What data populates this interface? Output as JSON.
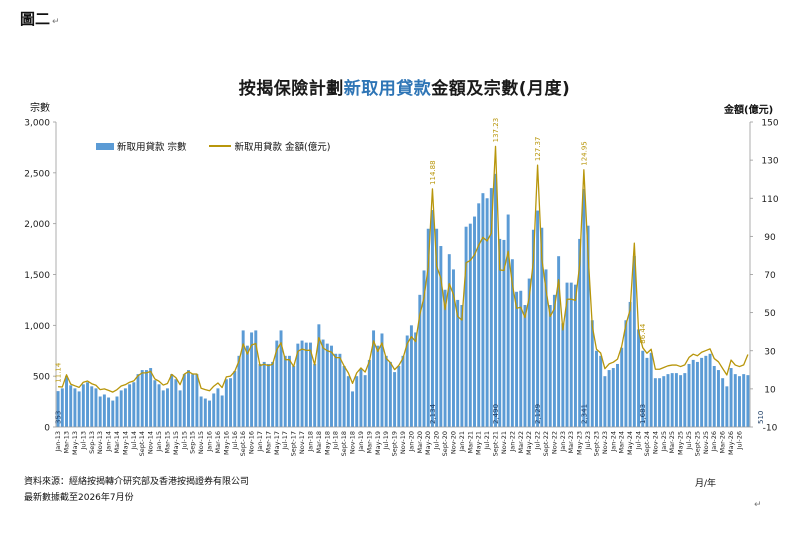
{
  "figure_label": "圖二",
  "paragraph_mark": "↵",
  "title_prefix": "按揭保險計劃",
  "title_highlight": "新取用貸款",
  "title_suffix": "金額及宗數(月度)",
  "source_line1": "資料來源：經絡按揭轉介研究部及香港按揭證券有限公司",
  "source_line2": "最新數據截至2026年7月份",
  "colors": {
    "bars": "#5b9bd5",
    "line": "#b8960b",
    "title_highlight": "#2e75b6"
  },
  "chart_data": {
    "type": "bar",
    "title": "按揭保險計劃新取用貸款金額及宗數(月度)",
    "ylabel_left": "宗數",
    "ylabel_right": "金額(億元)",
    "xlabel": "月/年",
    "left_axis": {
      "min": 0,
      "max": 3000,
      "ticks": [
        "0",
        "500",
        "1,000",
        "1,500",
        "2,000",
        "2,500",
        "3,000"
      ]
    },
    "right_axis": {
      "min": -10,
      "max": 150,
      "ticks": [
        "-10",
        "10",
        "30",
        "50",
        "70",
        "90",
        "110",
        "130",
        "150"
      ]
    },
    "x_tick_labels": [
      "Jan-13",
      "Mar-13",
      "May-13",
      "Jul-13",
      "Sep-13",
      "Nov-13",
      "Jan-14",
      "Mar-14",
      "May-14",
      "Jul-14",
      "Sept-14",
      "Nov-14",
      "Jan-15",
      "Mar-15",
      "May-15",
      "Jul-15",
      "Sep-15",
      "Nov-15",
      "Jan-16",
      "Mar-16",
      "May-16",
      "Jul-16",
      "Sept-16",
      "Nov-16",
      "Jan-17",
      "Mar-17",
      "May-17",
      "Jul-17",
      "Sept-17",
      "Nov-17",
      "Jan-18",
      "Mar-18",
      "May-18",
      "Jul-18",
      "Sept-18",
      "Nov-18",
      "Jan-19",
      "Mar-19",
      "May-19",
      "Jul-19",
      "Sept-19",
      "Nov-19",
      "Jan-20",
      "Mar-20",
      "May-20",
      "Jul-20",
      "Sept-20",
      "Nov-20",
      "Jan-21",
      "Mar-21",
      "May-21",
      "Jul-21",
      "Sept-21",
      "Nov-21",
      "Jan-22",
      "Mar-22",
      "May-22",
      "Jul-22",
      "Sept-22",
      "Nov-22",
      "Jan-23",
      "Mar-23",
      "May-23",
      "Jul-23",
      "Sept-23",
      "Nov-23",
      "Jan-24",
      "Mar-24",
      "May-24",
      "Jul-24",
      "Sept-24",
      "Nov-24",
      "Jan-25",
      "Mar-25",
      "May-25",
      "Jul-25",
      "Sept-25",
      "Nov-25",
      "Jan-26",
      "Mar-26",
      "May-26",
      "Jul-26"
    ],
    "series": [
      {
        "name": "新取用貸款 宗數",
        "axis": "left",
        "type": "bar",
        "values": [
          353,
          380,
          500,
          410,
          380,
          350,
          420,
          440,
          400,
          380,
          300,
          320,
          290,
          260,
          300,
          360,
          380,
          420,
          440,
          520,
          560,
          560,
          580,
          460,
          420,
          360,
          380,
          520,
          470,
          360,
          520,
          560,
          520,
          520,
          300,
          280,
          260,
          330,
          380,
          310,
          470,
          480,
          550,
          700,
          950,
          800,
          930,
          950,
          620,
          640,
          620,
          640,
          850,
          950,
          700,
          700,
          600,
          820,
          850,
          830,
          830,
          620,
          1010,
          860,
          820,
          800,
          720,
          720,
          600,
          500,
          350,
          500,
          570,
          510,
          660,
          950,
          800,
          920,
          700,
          640,
          540,
          600,
          700,
          900,
          1000,
          930,
          1300,
          1540,
          1950,
          2134,
          1950,
          1780,
          1350,
          1700,
          1550,
          1250,
          1200,
          1970,
          2000,
          2070,
          2200,
          2300,
          2250,
          2350,
          2490,
          1850,
          1840,
          2090,
          1650,
          1330,
          1340,
          1200,
          1460,
          1940,
          2129,
          1960,
          1550,
          1200,
          1300,
          1680,
          1020,
          1420,
          1420,
          1400,
          1850,
          2341,
          1980,
          1050,
          750,
          700,
          500,
          560,
          580,
          620,
          780,
          1050,
          1230,
          1683,
          960,
          750,
          680,
          730,
          480,
          480,
          500,
          520,
          530,
          530,
          510,
          530,
          620,
          660,
          640,
          680,
          700,
          720,
          600,
          560,
          480,
          400,
          580,
          520,
          500,
          520,
          510
        ]
      },
      {
        "name": "新取用貸款 金額(億元)",
        "axis": "right",
        "type": "line",
        "values": [
          11.14,
          11.0,
          17.4,
          12.5,
          11.6,
          10.8,
          13.5,
          14.1,
          12.7,
          11.9,
          9.6,
          10.0,
          9.2,
          8.3,
          9.6,
          11.5,
          12.2,
          13.5,
          14.2,
          16.9,
          18.4,
          18.4,
          19.2,
          15.2,
          14.0,
          12.0,
          12.8,
          17.6,
          15.9,
          12.2,
          17.7,
          19.1,
          17.8,
          17.8,
          10.3,
          9.6,
          9.0,
          11.4,
          13.1,
          10.7,
          16.3,
          16.7,
          19.2,
          24.6,
          33.6,
          28.3,
          33.0,
          33.8,
          22.2,
          22.9,
          22.2,
          22.9,
          30.6,
          34.2,
          25.3,
          25.3,
          21.7,
          29.7,
          30.9,
          30.2,
          30.3,
          22.6,
          36.9,
          31.5,
          30.0,
          29.3,
          26.4,
          26.4,
          22.0,
          18.4,
          12.9,
          18.4,
          21.0,
          18.8,
          24.4,
          35.2,
          29.6,
          34.1,
          26.0,
          23.8,
          20.1,
          22.3,
          26.1,
          33.7,
          37.4,
          34.8,
          48.9,
          58.1,
          73.9,
          114.88,
          74.4,
          68.0,
          51.6,
          65.2,
          59.5,
          48.0,
          46.1,
          76.1,
          77.4,
          80.3,
          85.4,
          89.5,
          87.6,
          91.7,
          137.23,
          72.4,
          72.1,
          82.2,
          64.9,
          52.3,
          52.8,
          47.4,
          57.8,
          77.0,
          127.37,
          78.3,
          62.0,
          48.0,
          52.1,
          67.3,
          40.9,
          57.0,
          57.1,
          56.4,
          74.9,
          124.95,
          80.7,
          43.0,
          30.8,
          28.8,
          20.6,
          23.1,
          24.0,
          25.6,
          32.4,
          43.8,
          51.5,
          86.44,
          40.4,
          31.6,
          28.7,
          30.8,
          20.3,
          20.3,
          21.2,
          22.1,
          22.5,
          22.5,
          21.7,
          22.6,
          26.5,
          28.2,
          27.4,
          29.2,
          30.1,
          31.0,
          25.9,
          24.2,
          20.7,
          17.3,
          25.1,
          22.5,
          21.7,
          22.6,
          28.05
        ]
      }
    ],
    "annotations": {
      "line_peaks": [
        {
          "index": 0,
          "label": "11.14"
        },
        {
          "index": 89,
          "label": "114.88"
        },
        {
          "index": 104,
          "label": "137.23"
        },
        {
          "index": 114,
          "label": "127.37"
        },
        {
          "index": 125,
          "label": "124.95"
        },
        {
          "index": 139,
          "label": "86.44"
        },
        {
          "index": 167,
          "label": "28.05"
        }
      ],
      "bar_labels": [
        {
          "index": 0,
          "label": "353"
        },
        {
          "index": 89,
          "label": "2,134"
        },
        {
          "index": 104,
          "label": "2,490"
        },
        {
          "index": 114,
          "label": "2,129"
        },
        {
          "index": 125,
          "label": "2,341"
        },
        {
          "index": 139,
          "label": "1,683"
        },
        {
          "index": 167,
          "label": "510"
        }
      ]
    },
    "legend_position": "top-left",
    "grid": false
  }
}
